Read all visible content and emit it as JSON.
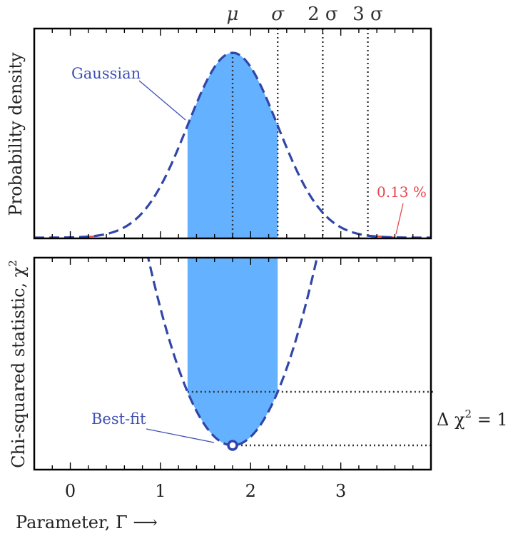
{
  "chart_data": [
    {
      "type": "line",
      "panel": "top",
      "ylabel": "Probability density",
      "xlim": [
        -0.4,
        4.0
      ],
      "grid": false,
      "series": [
        {
          "name": "Gaussian",
          "style": "dashed",
          "mu": 1.8,
          "sigma": 0.5,
          "x": [
            -0.4,
            0.0,
            0.4,
            0.8,
            1.0,
            1.2,
            1.3,
            1.4,
            1.6,
            1.8,
            2.0,
            2.2,
            2.3,
            2.4,
            2.6,
            2.8,
            3.0,
            3.3,
            3.6,
            4.0
          ],
          "y": [
            0.0,
            0.002,
            0.02,
            0.135,
            0.278,
            0.487,
            0.607,
            0.726,
            0.923,
            1.0,
            0.923,
            0.726,
            0.607,
            0.487,
            0.278,
            0.135,
            0.056,
            0.011,
            0.002,
            0.0
          ]
        }
      ],
      "shaded_band": {
        "x_from": 1.3,
        "x_to": 2.3,
        "color": "#64b2ff"
      },
      "reference_lines": [
        {
          "x": 1.8,
          "label": "μ"
        },
        {
          "x": 2.3,
          "label": "σ"
        },
        {
          "x": 2.8,
          "label": "2 σ"
        },
        {
          "x": 3.3,
          "label": "3 σ"
        }
      ],
      "annotations": [
        {
          "text": "Gaussian",
          "color": "#3f4fb4"
        },
        {
          "text": "0.13 %",
          "color": "#e8464f"
        }
      ]
    },
    {
      "type": "line",
      "panel": "bottom",
      "ylabel": "Chi-squared statistic, χ²",
      "xlabel": "Parameter, Γ ⟶",
      "xlim": [
        -0.4,
        4.0
      ],
      "x_ticks": [
        "0",
        "1",
        "2",
        "3"
      ],
      "x_tick_values": [
        0,
        1,
        2,
        3
      ],
      "grid": false,
      "series": [
        {
          "name": "chi-squared",
          "style": "dashed",
          "x": [
            0.85,
            1.0,
            1.2,
            1.3,
            1.4,
            1.6,
            1.8,
            2.0,
            2.2,
            2.3,
            2.4,
            2.6,
            2.75
          ],
          "y": [
            3.61,
            2.56,
            1.44,
            1.0,
            0.64,
            0.16,
            0.0,
            0.16,
            0.64,
            1.0,
            1.44,
            2.56,
            3.61
          ]
        }
      ],
      "shaded_band": {
        "x_from": 1.3,
        "x_to": 2.3,
        "color": "#64b2ff",
        "bounded_by_curve": true
      },
      "minimum_marker": {
        "x": 1.8,
        "y": 0.0
      },
      "reference_lines": [
        {
          "y": 1.0,
          "label": "Δ χ² = 1"
        },
        {
          "y": 0.0
        }
      ],
      "annotations": [
        {
          "text": "Best-fit",
          "color": "#3f4fb4"
        }
      ]
    }
  ],
  "labels": {
    "top_ylabel": "Probability density",
    "bottom_ylabel": "Chi-squared statistic, χ",
    "bottom_ylabel_sup": "2",
    "xlabel": "Parameter, Γ ⟶",
    "mu": "μ",
    "sigma": "σ",
    "two_sigma": "2 σ",
    "three_sigma": "3 σ",
    "gaussian": "Gaussian",
    "tail_pct": "0.13 %",
    "best_fit": "Best-fit",
    "delta_chi_prefix": "Δ χ",
    "delta_chi_sup": "2",
    "delta_chi_suffix": " = 1"
  },
  "colors": {
    "curve": "#3046a8",
    "band": "#64b2ff",
    "annotation_blue": "#3f4fb4",
    "annotation_red": "#e8464f",
    "ref_line": "#333333"
  }
}
